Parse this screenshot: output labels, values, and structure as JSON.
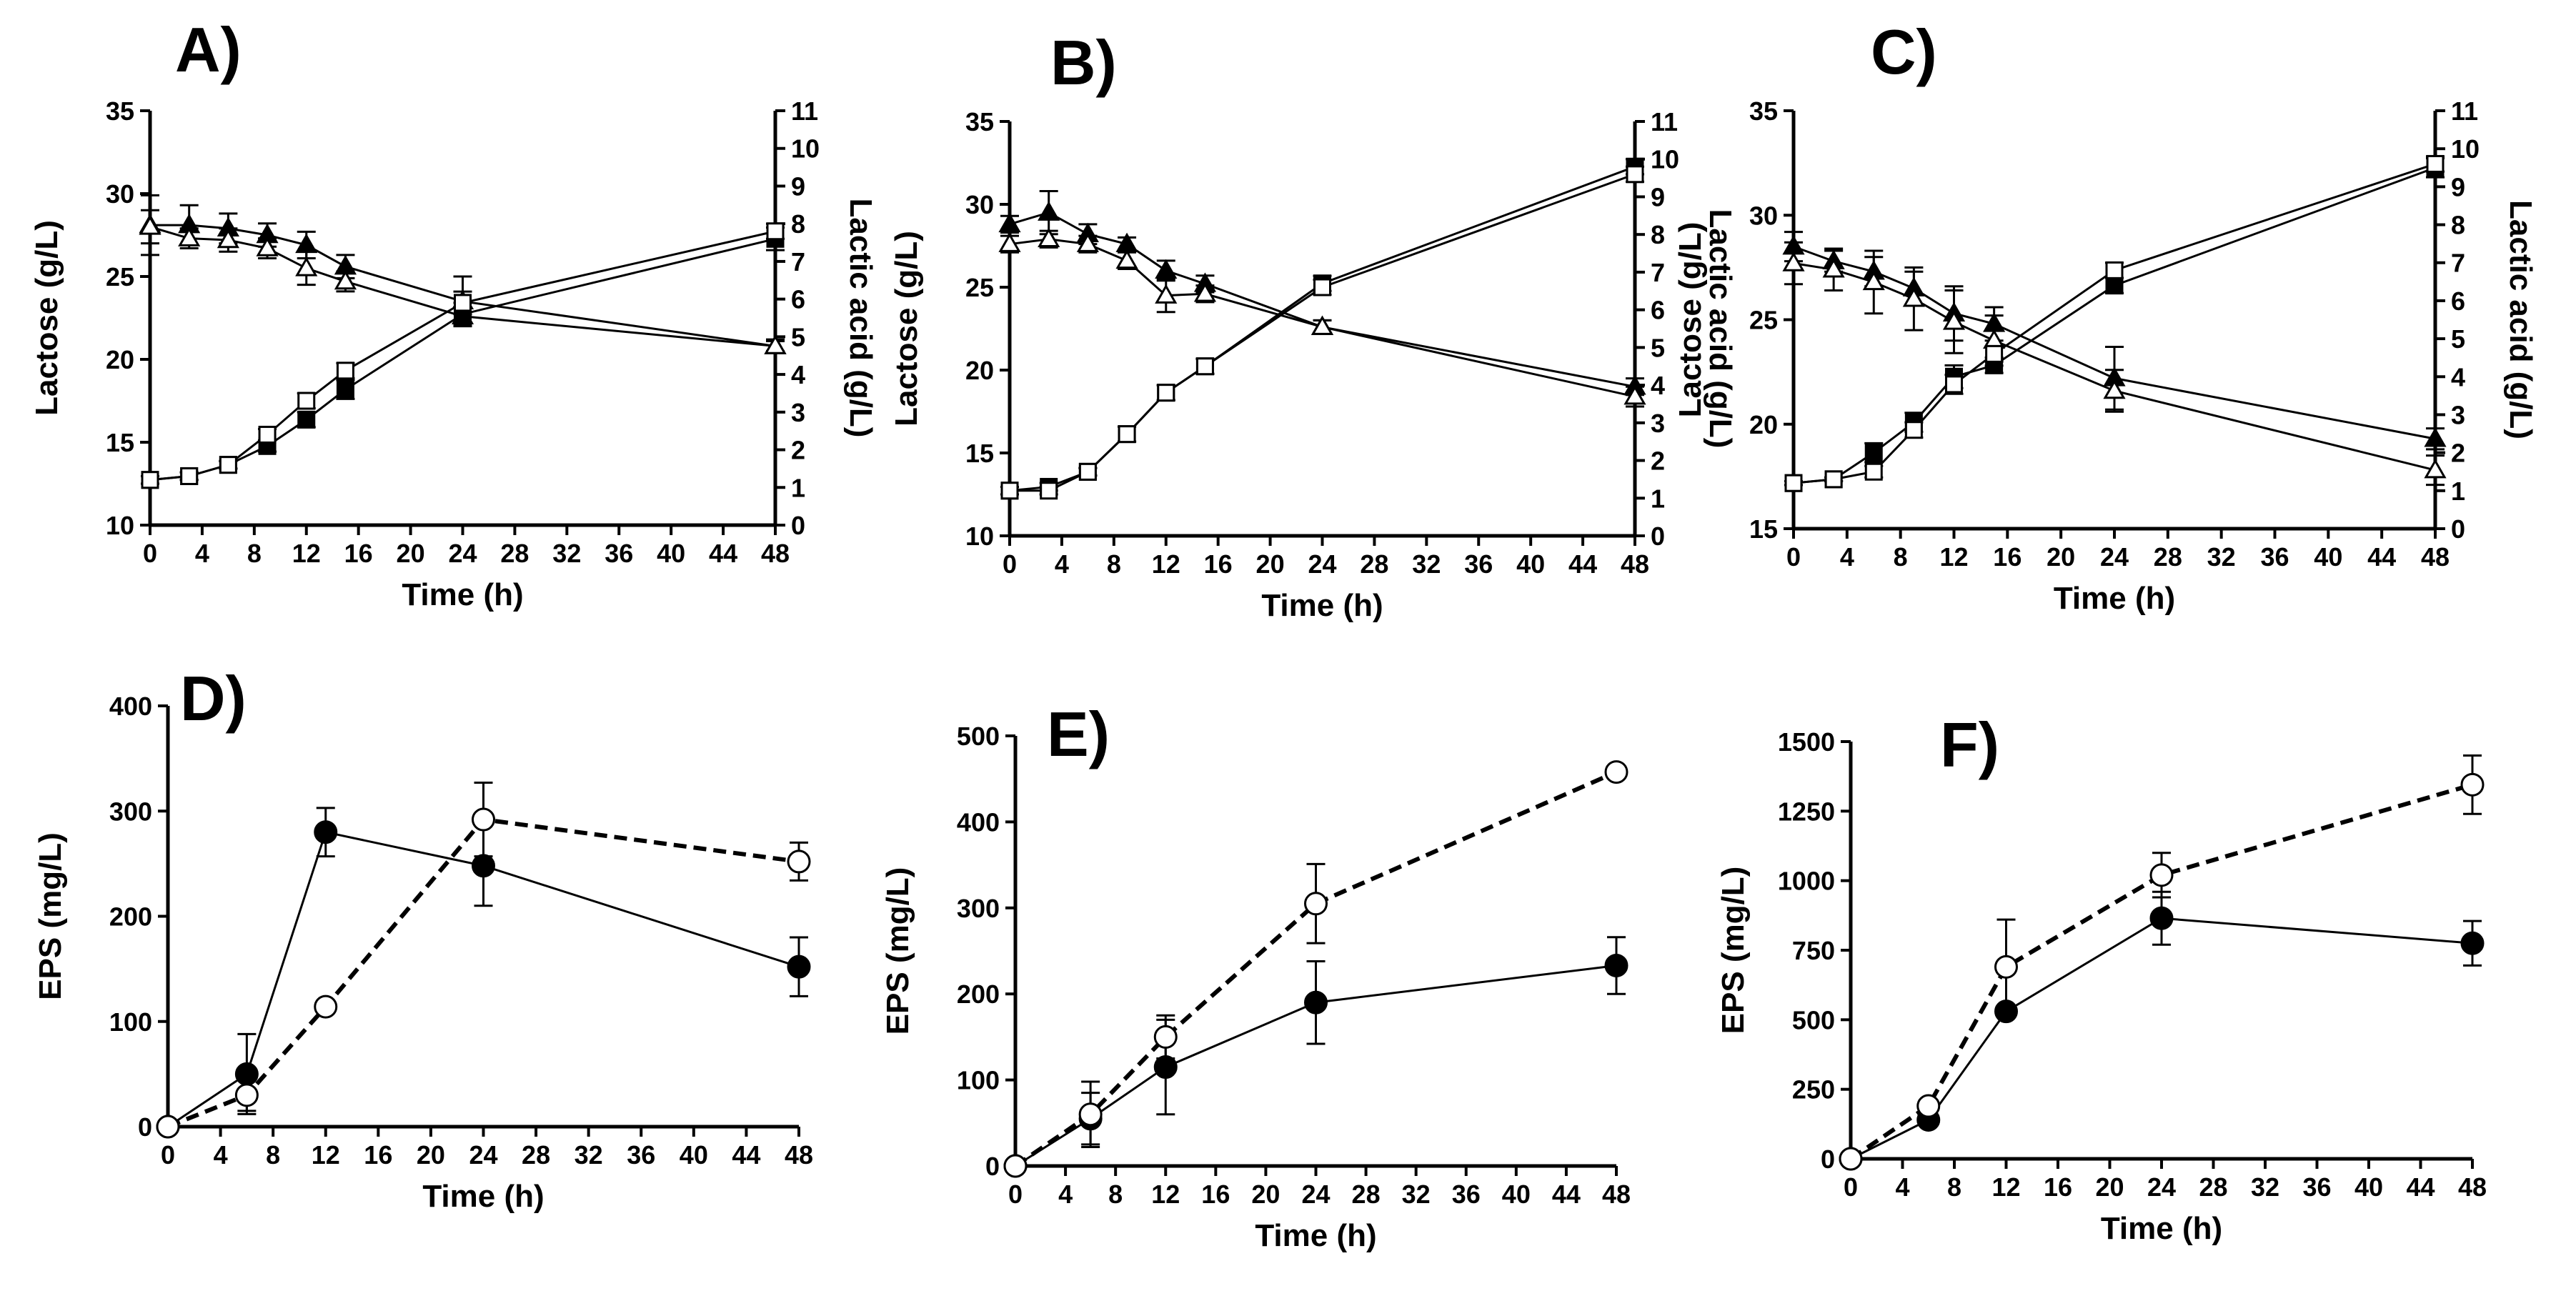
{
  "figure": {
    "panel_count": 6
  },
  "chart_data": [
    {
      "panel": "A)",
      "type": "line",
      "xlabel": "Time (h)",
      "ylabel": "Lactose (g/L)",
      "y2label": "Lactic acid (g/L)",
      "xlim": [
        0,
        48
      ],
      "xticks": [
        0,
        4,
        8,
        12,
        16,
        20,
        24,
        28,
        32,
        36,
        40,
        44,
        48
      ],
      "ylim": [
        10,
        35
      ],
      "yticks": [
        10,
        15,
        20,
        25,
        30,
        35
      ],
      "y2lim": [
        0,
        11
      ],
      "y2ticks": [
        0,
        1,
        2,
        3,
        4,
        5,
        6,
        7,
        8,
        9,
        10,
        11
      ],
      "series": [
        {
          "name": "lactose-filled-triangle",
          "axis": "y",
          "marker": "triangle",
          "filled": true,
          "x": [
            0,
            3,
            6,
            9,
            12,
            15,
            24,
            48
          ],
          "values": [
            28.1,
            28.1,
            27.9,
            27.5,
            26.9,
            25.6,
            23.5,
            20.8
          ],
          "errors": [
            1.8,
            1.2,
            0.9,
            0.7,
            0.8,
            0.7,
            1.5,
            0.4
          ]
        },
        {
          "name": "lactose-open-triangle",
          "axis": "y",
          "marker": "triangle",
          "filled": false,
          "x": [
            0,
            3,
            6,
            9,
            12,
            15,
            24,
            48
          ],
          "values": [
            28.0,
            27.3,
            27.2,
            26.7,
            25.5,
            24.7,
            22.6,
            20.8
          ],
          "errors": [
            1.0,
            0.6,
            0.7,
            0.6,
            1.0,
            0.6,
            0.5,
            0.3
          ]
        },
        {
          "name": "lactic-filled-square",
          "axis": "y2",
          "marker": "square",
          "filled": true,
          "x": [
            0,
            3,
            6,
            9,
            12,
            15,
            24,
            48
          ],
          "values": [
            1.2,
            1.3,
            1.6,
            2.1,
            2.8,
            3.6,
            5.6,
            7.6
          ],
          "errors": [
            0.1,
            0.1,
            0.1,
            0.15,
            0.2,
            0.25,
            0.3,
            0.3
          ]
        },
        {
          "name": "lactic-open-square",
          "axis": "y2",
          "marker": "square",
          "filled": false,
          "x": [
            0,
            3,
            6,
            9,
            12,
            15,
            24,
            48
          ],
          "values": [
            1.2,
            1.3,
            1.6,
            2.4,
            3.3,
            4.1,
            5.9,
            7.8
          ],
          "errors": [
            0.1,
            0.1,
            0.1,
            0.15,
            0.2,
            0.2,
            0.3,
            0.2
          ]
        }
      ]
    },
    {
      "panel": "B)",
      "type": "line",
      "xlabel": "Time (h)",
      "ylabel": "Lactose (g/L)",
      "y2label": "Lactic acid (g/L)",
      "xlim": [
        0,
        48
      ],
      "xticks": [
        0,
        4,
        8,
        12,
        16,
        20,
        24,
        28,
        32,
        36,
        40,
        44,
        48
      ],
      "ylim": [
        10,
        35
      ],
      "yticks": [
        10,
        15,
        20,
        25,
        30,
        35
      ],
      "y2lim": [
        0,
        11
      ],
      "y2ticks": [
        0,
        1,
        2,
        3,
        4,
        5,
        6,
        7,
        8,
        9,
        10,
        11
      ],
      "series": [
        {
          "name": "lactose-filled-triangle",
          "axis": "y",
          "marker": "triangle",
          "filled": true,
          "x": [
            0,
            3,
            6,
            9,
            12,
            15,
            24,
            48
          ],
          "values": [
            28.8,
            29.5,
            28.2,
            27.6,
            26.0,
            25.2,
            22.6,
            19.0
          ],
          "errors": [
            0.5,
            1.3,
            0.6,
            0.4,
            0.6,
            0.5,
            0.4,
            0.5
          ]
        },
        {
          "name": "lactose-open-triangle",
          "axis": "y",
          "marker": "triangle",
          "filled": false,
          "x": [
            0,
            3,
            6,
            9,
            12,
            15,
            24,
            48
          ],
          "values": [
            27.6,
            27.9,
            27.6,
            26.6,
            24.5,
            24.6,
            22.6,
            18.4
          ],
          "errors": [
            0.5,
            0.5,
            0.5,
            0.5,
            1.0,
            0.5,
            0.4,
            0.6
          ]
        },
        {
          "name": "lactic-filled-square",
          "axis": "y2",
          "marker": "square",
          "filled": true,
          "x": [
            0,
            3,
            6,
            9,
            12,
            15,
            24,
            48
          ],
          "values": [
            1.2,
            1.3,
            1.7,
            2.7,
            3.8,
            4.5,
            6.7,
            9.8
          ],
          "errors": [
            0.1,
            0.1,
            0.1,
            0.2,
            0.2,
            0.2,
            0.2,
            0.2
          ]
        },
        {
          "name": "lactic-open-square",
          "axis": "y2",
          "marker": "square",
          "filled": false,
          "x": [
            0,
            3,
            6,
            9,
            12,
            15,
            24,
            48
          ],
          "values": [
            1.2,
            1.2,
            1.7,
            2.7,
            3.8,
            4.5,
            6.6,
            9.6
          ],
          "errors": [
            0.1,
            0.1,
            0.1,
            0.2,
            0.2,
            0.2,
            0.2,
            0.2
          ]
        }
      ]
    },
    {
      "panel": "C)",
      "type": "line",
      "xlabel": "Time (h)",
      "ylabel": "Lactose (g/L)",
      "y2label": "Lactic acid (g/L)",
      "xlim": [
        0,
        48
      ],
      "xticks": [
        0,
        4,
        8,
        12,
        16,
        20,
        24,
        28,
        32,
        36,
        40,
        44,
        48
      ],
      "ylim": [
        15,
        35
      ],
      "yticks": [
        15,
        20,
        25,
        30,
        35
      ],
      "y2lim": [
        0,
        11
      ],
      "y2ticks": [
        0,
        1,
        2,
        3,
        4,
        5,
        6,
        7,
        8,
        9,
        10,
        11
      ],
      "series": [
        {
          "name": "lactose-filled-triangle",
          "axis": "y",
          "marker": "triangle",
          "filled": true,
          "x": [
            0,
            3,
            6,
            9,
            12,
            15,
            24,
            48
          ],
          "values": [
            28.5,
            27.8,
            27.3,
            26.5,
            25.3,
            24.8,
            22.2,
            19.3
          ],
          "errors": [
            0.7,
            0.5,
            0.7,
            0.8,
            1.3,
            0.8,
            1.5,
            0.5
          ]
        },
        {
          "name": "lactose-open-triangle",
          "axis": "y",
          "marker": "triangle",
          "filled": false,
          "x": [
            0,
            3,
            6,
            9,
            12,
            15,
            24,
            48
          ],
          "values": [
            27.7,
            27.4,
            26.8,
            26.0,
            24.9,
            24.0,
            21.6,
            17.8
          ],
          "errors": [
            1.0,
            1.0,
            1.5,
            1.5,
            1.5,
            1.2,
            1.0,
            0.7
          ]
        },
        {
          "name": "lactic-filled-square",
          "axis": "y2",
          "marker": "square",
          "filled": true,
          "x": [
            0,
            3,
            6,
            9,
            12,
            15,
            24,
            48
          ],
          "values": [
            1.2,
            1.3,
            2.0,
            2.8,
            4.0,
            4.3,
            6.4,
            9.5
          ],
          "errors": [
            0.05,
            0.05,
            0.25,
            0.25,
            0.3,
            0.2,
            0.2,
            0.25
          ]
        },
        {
          "name": "lactic-open-square",
          "axis": "y2",
          "marker": "square",
          "filled": false,
          "x": [
            0,
            3,
            6,
            9,
            12,
            15,
            24,
            48
          ],
          "values": [
            1.2,
            1.3,
            1.5,
            2.6,
            3.8,
            4.6,
            6.8,
            9.6
          ],
          "errors": [
            0.05,
            0.05,
            0.15,
            0.2,
            0.25,
            0.2,
            0.2,
            0.2
          ]
        }
      ]
    },
    {
      "panel": "D)",
      "type": "line",
      "xlabel": "Time (h)",
      "ylabel": "EPS (mg/L)",
      "xlim": [
        0,
        48
      ],
      "xticks": [
        0,
        4,
        8,
        12,
        16,
        20,
        24,
        28,
        32,
        36,
        40,
        44,
        48
      ],
      "ylim": [
        0,
        400
      ],
      "yticks": [
        0,
        100,
        200,
        300,
        400
      ],
      "series": [
        {
          "name": "eps-filled-circle",
          "marker": "circle",
          "filled": true,
          "dashed": false,
          "x": [
            0,
            6,
            12,
            24,
            48
          ],
          "values": [
            0,
            50,
            280,
            248,
            152
          ],
          "errors": [
            0,
            38,
            23,
            38,
            28
          ]
        },
        {
          "name": "eps-open-circle",
          "marker": "circle",
          "filled": false,
          "dashed": true,
          "x": [
            0,
            6,
            12,
            24,
            48
          ],
          "values": [
            0,
            30,
            114,
            292,
            252
          ],
          "errors": [
            0,
            15,
            6,
            35,
            18
          ]
        }
      ]
    },
    {
      "panel": "E)",
      "type": "line",
      "xlabel": "Time (h)",
      "ylabel": "EPS (mg/L)",
      "xlim": [
        0,
        48
      ],
      "xticks": [
        0,
        4,
        8,
        12,
        16,
        20,
        24,
        28,
        32,
        36,
        40,
        44,
        48
      ],
      "ylim": [
        0,
        500
      ],
      "yticks": [
        0,
        100,
        200,
        300,
        400,
        500
      ],
      "series": [
        {
          "name": "eps-filled-circle",
          "marker": "circle",
          "filled": true,
          "dashed": false,
          "x": [
            0,
            6,
            12,
            24,
            48
          ],
          "values": [
            0,
            55,
            115,
            190,
            233
          ],
          "errors": [
            0,
            30,
            55,
            48,
            33
          ]
        },
        {
          "name": "eps-open-circle",
          "marker": "circle",
          "filled": false,
          "dashed": true,
          "x": [
            0,
            6,
            12,
            24,
            48
          ],
          "values": [
            0,
            60,
            150,
            305,
            458
          ],
          "errors": [
            0,
            38,
            25,
            46,
            5
          ]
        }
      ]
    },
    {
      "panel": "F)",
      "type": "line",
      "xlabel": "Time (h)",
      "ylabel": "EPS (mg/L)",
      "xlim": [
        0,
        48
      ],
      "xticks": [
        0,
        4,
        8,
        12,
        16,
        20,
        24,
        28,
        32,
        36,
        40,
        44,
        48
      ],
      "ylim": [
        0,
        1500
      ],
      "yticks": [
        0,
        250,
        500,
        750,
        1000,
        1250,
        1500
      ],
      "series": [
        {
          "name": "eps-filled-circle",
          "marker": "circle",
          "filled": true,
          "dashed": false,
          "x": [
            0,
            6,
            12,
            24,
            48
          ],
          "values": [
            0,
            140,
            530,
            865,
            775
          ],
          "errors": [
            0,
            10,
            10,
            95,
            80
          ]
        },
        {
          "name": "eps-open-circle",
          "marker": "circle",
          "filled": false,
          "dashed": true,
          "x": [
            0,
            6,
            12,
            24,
            48
          ],
          "values": [
            0,
            190,
            690,
            1020,
            1345
          ],
          "errors": [
            0,
            15,
            170,
            80,
            105
          ]
        }
      ]
    }
  ]
}
